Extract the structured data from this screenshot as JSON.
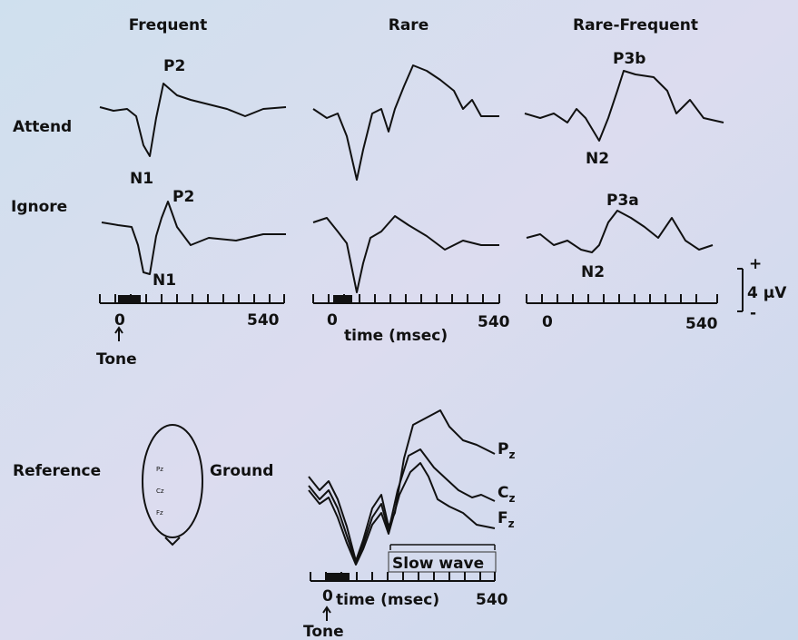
{
  "columns": [
    "Frequent",
    "Rare",
    "Rare-Frequent"
  ],
  "rows": [
    "Attend",
    "Ignore"
  ],
  "peaks": {
    "attend_frequent": [
      "P2",
      "N1"
    ],
    "ignore_frequent": [
      "P2",
      "N1"
    ],
    "attend_rare_frequent": [
      "P3b",
      "N2"
    ],
    "ignore_rare_frequent": [
      "P3a",
      "N2"
    ]
  },
  "axes": {
    "start": "0",
    "end": "540",
    "label": "time (msec)",
    "stimulus": "Tone"
  },
  "scale": {
    "plus": "+",
    "amount": "4 µV",
    "minus": "-"
  },
  "head": {
    "left": "Reference",
    "right": "Ground",
    "electrodes": [
      "Pz",
      "Cz",
      "Fz"
    ]
  },
  "traces": [
    {
      "letter": "P",
      "sub": "z"
    },
    {
      "letter": "C",
      "sub": "z"
    },
    {
      "letter": "F",
      "sub": "z"
    }
  ],
  "slow_wave": "Slow wave"
}
